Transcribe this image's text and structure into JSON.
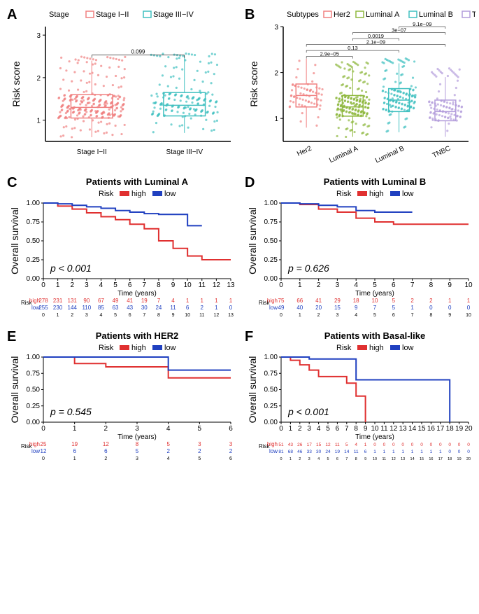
{
  "panels": {
    "A": {
      "label": "A",
      "legend_title": "Stage",
      "legend_items": [
        {
          "label": "Stage I−II",
          "color": "#f08080"
        },
        {
          "label": "Stage III−IV",
          "color": "#40c0c0"
        }
      ],
      "ylabel": "Risk score",
      "categories": [
        "Stage I−II",
        "Stage III−IV"
      ],
      "ylim": [
        0.5,
        3.2
      ],
      "yticks": [
        1,
        2,
        3
      ],
      "pvalue": "0.099",
      "boxes": [
        {
          "x": 0,
          "q1": 1.05,
          "median": 1.3,
          "q3": 1.6,
          "whisker_low": 0.6,
          "whisker_high": 2.4,
          "color": "#f08080"
        },
        {
          "x": 1,
          "q1": 1.1,
          "median": 1.35,
          "q3": 1.65,
          "whisker_low": 0.7,
          "whisker_high": 2.5,
          "color": "#40c0c0"
        }
      ],
      "jitter_n": [
        280,
        180
      ]
    },
    "B": {
      "label": "B",
      "legend_title": "Subtypes",
      "legend_items": [
        {
          "label": "Her2",
          "color": "#f08080"
        },
        {
          "label": "Luminal A",
          "color": "#8fb83e"
        },
        {
          "label": "Luminal B",
          "color": "#40c0c0"
        },
        {
          "label": "TNBC",
          "color": "#b39ddb"
        }
      ],
      "ylabel": "Risk score",
      "categories": [
        "Her2",
        "Luminal A",
        "Luminal B",
        "TNBC"
      ],
      "ylim": [
        0.5,
        3.0
      ],
      "yticks": [
        1,
        2,
        3
      ],
      "pvalues": [
        {
          "from": 0,
          "to": 1,
          "label": "2.9e−05",
          "y": 2.35
        },
        {
          "from": 0,
          "to": 2,
          "label": "0.13",
          "y": 2.48
        },
        {
          "from": 0,
          "to": 3,
          "label": "2.1e−09",
          "y": 2.61
        },
        {
          "from": 1,
          "to": 2,
          "label": "0.0019",
          "y": 2.74
        },
        {
          "from": 1,
          "to": 3,
          "label": "3e−07",
          "y": 2.87
        },
        {
          "from": 2,
          "to": 3,
          "label": "9.1e−09",
          "y": 3.0
        }
      ],
      "boxes": [
        {
          "x": 0,
          "q1": 1.25,
          "median": 1.5,
          "q3": 1.75,
          "whisker_low": 0.8,
          "whisker_high": 2.3,
          "color": "#f08080"
        },
        {
          "x": 1,
          "q1": 1.05,
          "median": 1.25,
          "q3": 1.5,
          "whisker_low": 0.6,
          "whisker_high": 2.1,
          "color": "#8fb83e"
        },
        {
          "x": 2,
          "q1": 1.15,
          "median": 1.4,
          "q3": 1.65,
          "whisker_low": 0.7,
          "whisker_high": 2.2,
          "color": "#40c0c0"
        },
        {
          "x": 3,
          "q1": 0.95,
          "median": 1.15,
          "q3": 1.4,
          "whisker_low": 0.6,
          "whisker_high": 1.9,
          "color": "#b39ddb"
        }
      ],
      "jitter_n": [
        60,
        220,
        150,
        100
      ]
    },
    "C": {
      "label": "C",
      "title": "Patients with Luminal A",
      "legend_title": "Risk",
      "high_color": "#e03030",
      "low_color": "#2040c0",
      "ylabel": "Overall survival",
      "xlabel": "Time (years)",
      "xlim": [
        0,
        13
      ],
      "xticks": [
        0,
        1,
        2,
        3,
        4,
        5,
        6,
        7,
        8,
        9,
        10,
        11,
        12,
        13
      ],
      "pvalue": "p < 0.001",
      "high_curve": [
        [
          0,
          1.0
        ],
        [
          1,
          0.96
        ],
        [
          2,
          0.92
        ],
        [
          3,
          0.87
        ],
        [
          4,
          0.82
        ],
        [
          5,
          0.78
        ],
        [
          6,
          0.72
        ],
        [
          7,
          0.66
        ],
        [
          8,
          0.5
        ],
        [
          9,
          0.4
        ],
        [
          10,
          0.3
        ],
        [
          11,
          0.25
        ],
        [
          12,
          0.25
        ],
        [
          13,
          0.25
        ]
      ],
      "low_curve": [
        [
          0,
          1.0
        ],
        [
          1,
          0.99
        ],
        [
          2,
          0.97
        ],
        [
          3,
          0.95
        ],
        [
          4,
          0.93
        ],
        [
          5,
          0.9
        ],
        [
          6,
          0.88
        ],
        [
          7,
          0.86
        ],
        [
          8,
          0.85
        ],
        [
          9,
          0.85
        ],
        [
          10,
          0.7
        ],
        [
          11,
          0.7
        ]
      ],
      "risk_high": [
        278,
        231,
        131,
        90,
        67,
        49,
        41,
        19,
        7,
        4,
        1,
        1,
        1,
        1
      ],
      "risk_low": [
        255,
        230,
        144,
        110,
        85,
        63,
        43,
        30,
        24,
        11,
        6,
        2,
        1,
        0
      ]
    },
    "D": {
      "label": "D",
      "title": "Patients with Luminal B",
      "legend_title": "Risk",
      "high_color": "#e03030",
      "low_color": "#2040c0",
      "ylabel": "Overall survival",
      "xlabel": "Time (years)",
      "xlim": [
        0,
        10
      ],
      "xticks": [
        0,
        1,
        2,
        3,
        4,
        5,
        6,
        7,
        8,
        9,
        10
      ],
      "pvalue": "p = 0.626",
      "high_curve": [
        [
          0,
          1.0
        ],
        [
          1,
          0.98
        ],
        [
          2,
          0.92
        ],
        [
          3,
          0.88
        ],
        [
          4,
          0.8
        ],
        [
          5,
          0.75
        ],
        [
          6,
          0.72
        ],
        [
          7,
          0.72
        ],
        [
          8,
          0.72
        ],
        [
          9,
          0.72
        ],
        [
          10,
          0.72
        ]
      ],
      "low_curve": [
        [
          0,
          1.0
        ],
        [
          1,
          0.99
        ],
        [
          2,
          0.97
        ],
        [
          3,
          0.95
        ],
        [
          4,
          0.9
        ],
        [
          5,
          0.88
        ],
        [
          6,
          0.88
        ],
        [
          7,
          0.88
        ]
      ],
      "risk_high": [
        75,
        66,
        41,
        29,
        18,
        10,
        5,
        2,
        2,
        1,
        1
      ],
      "risk_low": [
        49,
        40,
        20,
        15,
        9,
        7,
        5,
        1,
        0,
        0,
        0
      ]
    },
    "E": {
      "label": "E",
      "title": "Patients with HER2",
      "legend_title": "Risk",
      "high_color": "#e03030",
      "low_color": "#2040c0",
      "ylabel": "Overall survival",
      "xlabel": "Time (years)",
      "xlim": [
        0,
        6
      ],
      "xticks": [
        0,
        1,
        2,
        3,
        4,
        5,
        6
      ],
      "pvalue": "p = 0.545",
      "high_curve": [
        [
          0,
          1.0
        ],
        [
          1,
          0.9
        ],
        [
          2,
          0.85
        ],
        [
          3,
          0.85
        ],
        [
          4,
          0.68
        ],
        [
          5,
          0.68
        ],
        [
          6,
          0.68
        ]
      ],
      "low_curve": [
        [
          0,
          1.0
        ],
        [
          1,
          1.0
        ],
        [
          2,
          1.0
        ],
        [
          3,
          1.0
        ],
        [
          4,
          0.8
        ],
        [
          5,
          0.8
        ],
        [
          6,
          0.8
        ]
      ],
      "risk_high": [
        25,
        19,
        12,
        8,
        5,
        3,
        3
      ],
      "risk_low": [
        12,
        6,
        6,
        5,
        2,
        2,
        2
      ]
    },
    "F": {
      "label": "F",
      "title": "Patients with Basal-like",
      "legend_title": "Risk",
      "high_color": "#e03030",
      "low_color": "#2040c0",
      "ylabel": "Overall survival",
      "xlabel": "Time (years)",
      "xlim": [
        0,
        20
      ],
      "xticks": [
        0,
        1,
        2,
        3,
        4,
        5,
        6,
        7,
        8,
        9,
        10,
        11,
        12,
        13,
        14,
        15,
        16,
        17,
        18,
        19,
        20
      ],
      "pvalue": "p < 0.001",
      "high_curve": [
        [
          0,
          1.0
        ],
        [
          1,
          0.95
        ],
        [
          2,
          0.88
        ],
        [
          3,
          0.8
        ],
        [
          4,
          0.7
        ],
        [
          5,
          0.7
        ],
        [
          6,
          0.7
        ],
        [
          7,
          0.6
        ],
        [
          8,
          0.4
        ],
        [
          9,
          0.0
        ]
      ],
      "low_curve": [
        [
          0,
          1.0
        ],
        [
          1,
          1.0
        ],
        [
          2,
          1.0
        ],
        [
          3,
          0.97
        ],
        [
          4,
          0.97
        ],
        [
          5,
          0.97
        ],
        [
          6,
          0.97
        ],
        [
          7,
          0.97
        ],
        [
          8,
          0.65
        ],
        [
          9,
          0.65
        ],
        [
          10,
          0.65
        ],
        [
          11,
          0.65
        ],
        [
          12,
          0.65
        ],
        [
          13,
          0.65
        ],
        [
          14,
          0.65
        ],
        [
          15,
          0.65
        ],
        [
          16,
          0.65
        ],
        [
          17,
          0.65
        ],
        [
          18,
          0.0
        ]
      ],
      "risk_high": [
        51,
        43,
        26,
        17,
        15,
        12,
        11,
        5,
        4,
        1,
        0,
        0,
        0,
        0,
        0,
        0,
        0,
        0,
        0,
        0,
        0
      ],
      "risk_low": [
        81,
        68,
        46,
        33,
        30,
        24,
        19,
        14,
        11,
        6,
        1,
        1,
        1,
        1,
        1,
        1,
        1,
        1,
        0,
        0,
        0
      ]
    }
  }
}
